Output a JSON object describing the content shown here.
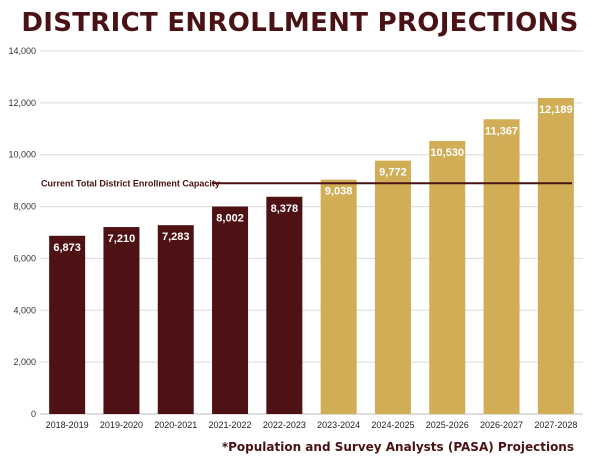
{
  "chart_data": {
    "type": "bar",
    "title": "DISTRICT ENROLLMENT PROJECTIONS",
    "xlabel": "",
    "ylabel": "",
    "ylim": [
      0,
      14000
    ],
    "yticks": [
      0,
      2000,
      4000,
      6000,
      8000,
      10000,
      12000,
      14000
    ],
    "ytick_labels": [
      "0",
      "2,000",
      "4,000",
      "6,000",
      "8,000",
      "10,000",
      "12,000",
      "14,000"
    ],
    "grid": true,
    "categories": [
      "2018-2019",
      "2019-2020",
      "2020-2021",
      "2021-2022",
      "2022-2023",
      "2023-2024",
      "2024-2025",
      "2025-2026",
      "2026-2027",
      "2027-2028"
    ],
    "values": [
      6873,
      7210,
      7283,
      8002,
      8378,
      9038,
      9772,
      10530,
      11367,
      12189
    ],
    "value_labels": [
      "6,873",
      "7,210",
      "7,283",
      "8,002",
      "8,378",
      "9,038",
      "9,772",
      "10,530",
      "11,367",
      "12,189"
    ],
    "projected": [
      false,
      false,
      false,
      false,
      false,
      true,
      true,
      true,
      true,
      true
    ],
    "colors": {
      "actual": "#4e1215",
      "projected": "#d1ad55",
      "title": "#4a1215",
      "grid": "#dcdcdc",
      "capacity_line": "#4a1215"
    },
    "reference_line": {
      "label": "Current Total District Enrollment Capacity",
      "value": 8900
    },
    "footnote": "*Population and Survey Analysts (PASA) Projections"
  }
}
